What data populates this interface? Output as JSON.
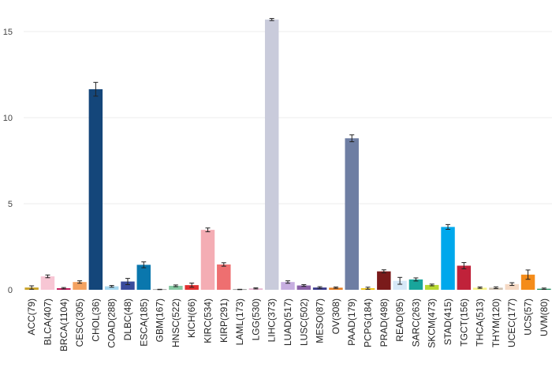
{
  "chart_data": {
    "type": "bar",
    "title": "",
    "xlabel": "",
    "ylabel": "",
    "ylim": [
      0,
      16
    ],
    "yticks": [
      0,
      5,
      10,
      15
    ],
    "grid": true,
    "error_bars": true,
    "categories": [
      "ACC(79)",
      "BLCA(407)",
      "BRCA(1104)",
      "CESC(305)",
      "CHOL(36)",
      "COAD(288)",
      "DLBC(48)",
      "ESCA(185)",
      "GBM(167)",
      "HNSC(522)",
      "KICH(66)",
      "KIRC(534)",
      "KIRP(291)",
      "LAML(173)",
      "LGG(530)",
      "LIHC(373)",
      "LUAD(517)",
      "LUSC(502)",
      "MESO(87)",
      "OV(308)",
      "PAAD(179)",
      "PCPG(184)",
      "PRAD(498)",
      "READ(95)",
      "SARC(263)",
      "SKCM(473)",
      "STAD(415)",
      "TGCT(156)",
      "THCA(513)",
      "THYM(120)",
      "UCEC(177)",
      "UCS(57)",
      "UVM(80)"
    ],
    "values": [
      0.13,
      0.78,
      0.09,
      0.45,
      11.65,
      0.2,
      0.48,
      1.45,
      0.02,
      0.23,
      0.27,
      3.48,
      1.47,
      0.02,
      0.08,
      15.7,
      0.45,
      0.25,
      0.13,
      0.12,
      8.8,
      0.09,
      1.07,
      0.52,
      0.6,
      0.28,
      3.65,
      1.4,
      0.12,
      0.12,
      0.33,
      0.88,
      0.06
    ],
    "errors": [
      0.1,
      0.08,
      0.04,
      0.07,
      0.4,
      0.05,
      0.18,
      0.17,
      0.01,
      0.05,
      0.12,
      0.11,
      0.1,
      0.01,
      0.03,
      0.06,
      0.07,
      0.05,
      0.05,
      0.04,
      0.2,
      0.06,
      0.09,
      0.2,
      0.09,
      0.05,
      0.14,
      0.18,
      0.04,
      0.05,
      0.08,
      0.27,
      0.04
    ],
    "colors": [
      "#c9a227",
      "#f7c6d4",
      "#c2185b",
      "#f4a261",
      "#14467a",
      "#a7d8f0",
      "#3a4b9c",
      "#0a77ad",
      "#4a4a4a",
      "#86c9a3",
      "#e03030",
      "#f4adb4",
      "#ee6f70",
      "#333333",
      "#e7b1cf",
      "#c9cbdb",
      "#c7aee0",
      "#8b61a8",
      "#3a3a8a",
      "#e67e22",
      "#6e7ea3",
      "#f0c419",
      "#7a1a1a",
      "#d6e8f7",
      "#18a59b",
      "#b8d832",
      "#00a8ec",
      "#c0223a",
      "#f7f38a",
      "#cdbfae",
      "#f5d9c4",
      "#f48c1a",
      "#1f8f5f"
    ]
  }
}
